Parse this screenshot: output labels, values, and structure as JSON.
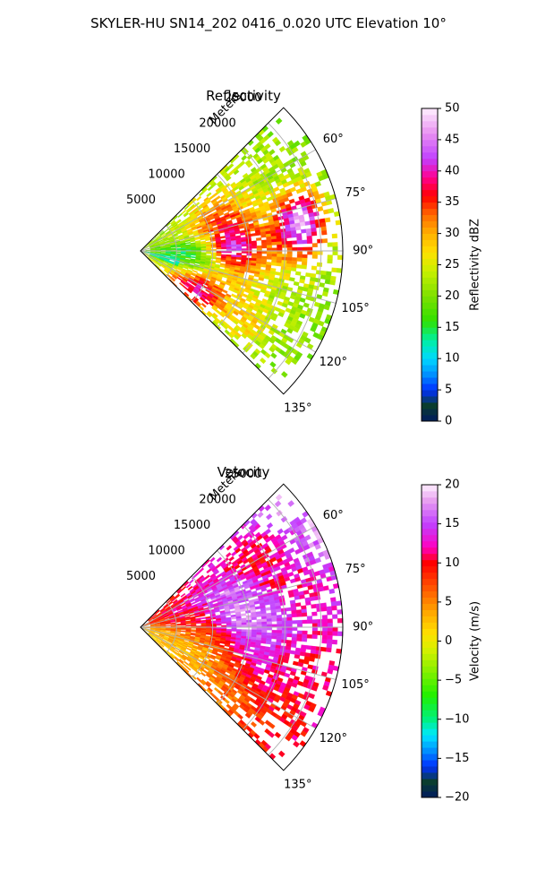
{
  "figure": {
    "title": "SKYLER-HU  SN14_202  0416_0.020 UTC Elevation 10°"
  },
  "chart_data": [
    {
      "type": "heatmap",
      "projection": "polar-sector",
      "title": "Reflectivity",
      "radial_label": "Meters",
      "r_ticks": [
        "5000",
        "10000",
        "15000",
        "20000",
        "25000"
      ],
      "r_tick_values": [
        5000,
        10000,
        15000,
        20000,
        25000
      ],
      "r_max": 28000,
      "theta_ticks": [
        "60°",
        "75°",
        "90°",
        "105°",
        "120°",
        "135°"
      ],
      "theta_tick_values": [
        60,
        75,
        90,
        105,
        120,
        135
      ],
      "theta_range": [
        45,
        135
      ],
      "grid": true,
      "colorbar": {
        "label": "Reflectivity dBZ",
        "range": [
          0,
          50
        ],
        "ticks": [
          "0",
          "5",
          "10",
          "15",
          "20",
          "25",
          "30",
          "35",
          "40",
          "45",
          "50"
        ],
        "tick_values": [
          0,
          5,
          10,
          15,
          20,
          25,
          30,
          35,
          40,
          45,
          50
        ],
        "stops": [
          {
            "v": 0,
            "c": "#001b5e"
          },
          {
            "v": 2.5,
            "c": "#0a3d2f"
          },
          {
            "v": 5,
            "c": "#0030ff"
          },
          {
            "v": 7.5,
            "c": "#0090ff"
          },
          {
            "v": 10,
            "c": "#00d8ff"
          },
          {
            "v": 13,
            "c": "#00f0a0"
          },
          {
            "v": 16,
            "c": "#30e000"
          },
          {
            "v": 20,
            "c": "#7ee000"
          },
          {
            "v": 24,
            "c": "#c8f000"
          },
          {
            "v": 27,
            "c": "#ffe000"
          },
          {
            "v": 30,
            "c": "#ffb000"
          },
          {
            "v": 33,
            "c": "#ff6a00"
          },
          {
            "v": 36,
            "c": "#ff0000"
          },
          {
            "v": 39,
            "c": "#ff0090"
          },
          {
            "v": 42,
            "c": "#c040ff"
          },
          {
            "v": 46,
            "c": "#e890f0"
          },
          {
            "v": 50,
            "c": "#fff0ff"
          }
        ]
      }
    },
    {
      "type": "heatmap",
      "projection": "polar-sector",
      "title": "Velocity",
      "radial_label": "Meters",
      "r_ticks": [
        "5000",
        "10000",
        "15000",
        "20000",
        "25000"
      ],
      "r_tick_values": [
        5000,
        10000,
        15000,
        20000,
        25000
      ],
      "r_max": 28000,
      "theta_ticks": [
        "60°",
        "75°",
        "90°",
        "105°",
        "120°",
        "135°"
      ],
      "theta_tick_values": [
        60,
        75,
        90,
        105,
        120,
        135
      ],
      "theta_range": [
        45,
        135
      ],
      "grid": true,
      "colorbar": {
        "label": "Velocity (m/s)",
        "range": [
          -20,
          20
        ],
        "ticks": [
          "−20",
          "−15",
          "−10",
          "−5",
          "0",
          "5",
          "10",
          "15",
          "20"
        ],
        "tick_values": [
          -20,
          -15,
          -10,
          -5,
          0,
          5,
          10,
          15,
          20
        ],
        "stops": [
          {
            "v": -20,
            "c": "#001b5e"
          },
          {
            "v": -18,
            "c": "#0a3d2f"
          },
          {
            "v": -16,
            "c": "#0030ff"
          },
          {
            "v": -14,
            "c": "#0090ff"
          },
          {
            "v": -12,
            "c": "#00e8ff"
          },
          {
            "v": -10,
            "c": "#00f080"
          },
          {
            "v": -7,
            "c": "#20f000"
          },
          {
            "v": -4,
            "c": "#80f000"
          },
          {
            "v": -1,
            "c": "#d8f000"
          },
          {
            "v": 1,
            "c": "#ffe000"
          },
          {
            "v": 4,
            "c": "#ffa000"
          },
          {
            "v": 7,
            "c": "#ff5000"
          },
          {
            "v": 10,
            "c": "#ff0000"
          },
          {
            "v": 12,
            "c": "#ff00c0"
          },
          {
            "v": 15,
            "c": "#c040ff"
          },
          {
            "v": 18,
            "c": "#e8a0f0"
          },
          {
            "v": 20,
            "c": "#fff0ff"
          }
        ]
      }
    }
  ]
}
